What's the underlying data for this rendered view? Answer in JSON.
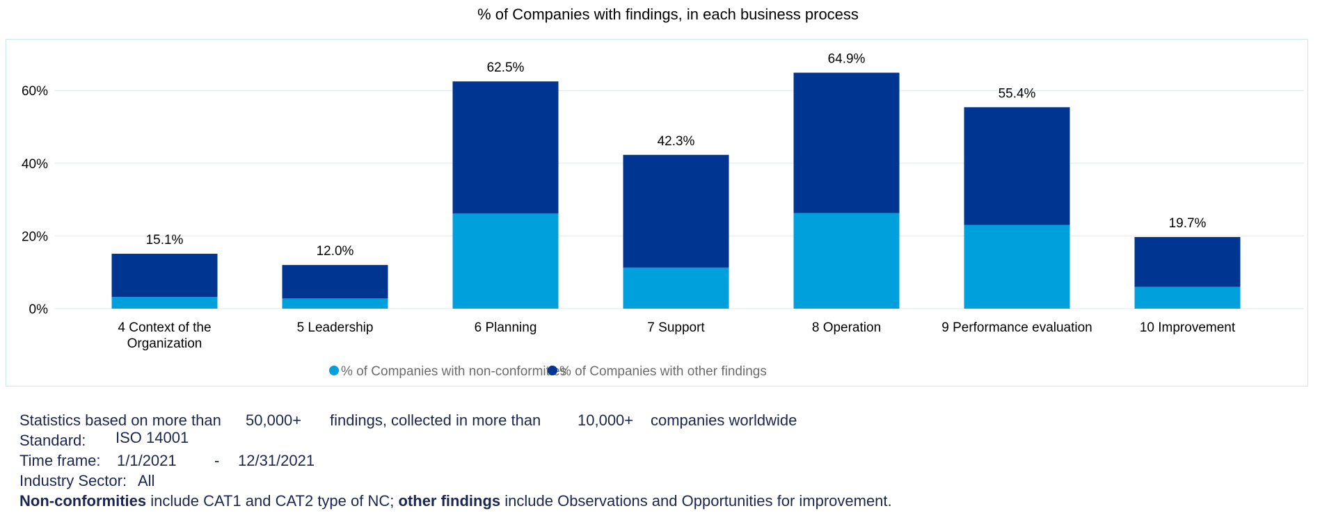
{
  "chart_data": {
    "type": "bar",
    "stacked": true,
    "title": "% of Companies with findings, in each business process",
    "categories": [
      "4 Context of the Organization",
      "5 Leadership",
      "6 Planning",
      "7 Support",
      "8 Operation",
      "9 Performance evaluation",
      "10 Improvement"
    ],
    "series": [
      {
        "name": "% of Companies with non-conformities",
        "color": "#00a0dc",
        "values": [
          3.2,
          2.8,
          26.2,
          11.3,
          26.3,
          23.0,
          6.0
        ]
      },
      {
        "name": "% of Companies with other findings",
        "color": "#003591",
        "values": [
          11.9,
          9.2,
          36.3,
          31.0,
          38.6,
          32.4,
          13.7
        ]
      }
    ],
    "totals": [
      15.1,
      12.0,
      62.5,
      42.3,
      64.9,
      55.4,
      19.7
    ],
    "total_labels": [
      "15.1%",
      "12.0%",
      "62.5%",
      "42.3%",
      "64.9%",
      "55.4%",
      "19.7%"
    ],
    "yticks": [
      0,
      20,
      40,
      60
    ],
    "ytick_labels": [
      "0%",
      "20%",
      "40%",
      "60%"
    ],
    "ylim": [
      0,
      70
    ],
    "grid": true,
    "legend_position": "bottom-center",
    "xlabel": "",
    "ylabel": ""
  },
  "info": {
    "stats_prefix": "Statistics based on more than",
    "findings_count": "50,000+",
    "stats_middle": "findings, collected in more than",
    "companies_count": "10,000+",
    "stats_suffix": "companies worldwide",
    "standard_label": "Standard:",
    "standard_value": "ISO 14001",
    "timeframe_label": "Time frame:",
    "timeframe_start": "1/1/2021",
    "timeframe_sep": "-",
    "timeframe_end": "12/31/2021",
    "sector_label": "Industry Sector:",
    "sector_value": "All",
    "note_nc_bold": "Non-conformities",
    "note_nc_text": " include CAT1 and CAT2 type of NC; ",
    "note_other_bold": "other findings",
    "note_other_text": " include Observations and Opportunities for improvement."
  }
}
